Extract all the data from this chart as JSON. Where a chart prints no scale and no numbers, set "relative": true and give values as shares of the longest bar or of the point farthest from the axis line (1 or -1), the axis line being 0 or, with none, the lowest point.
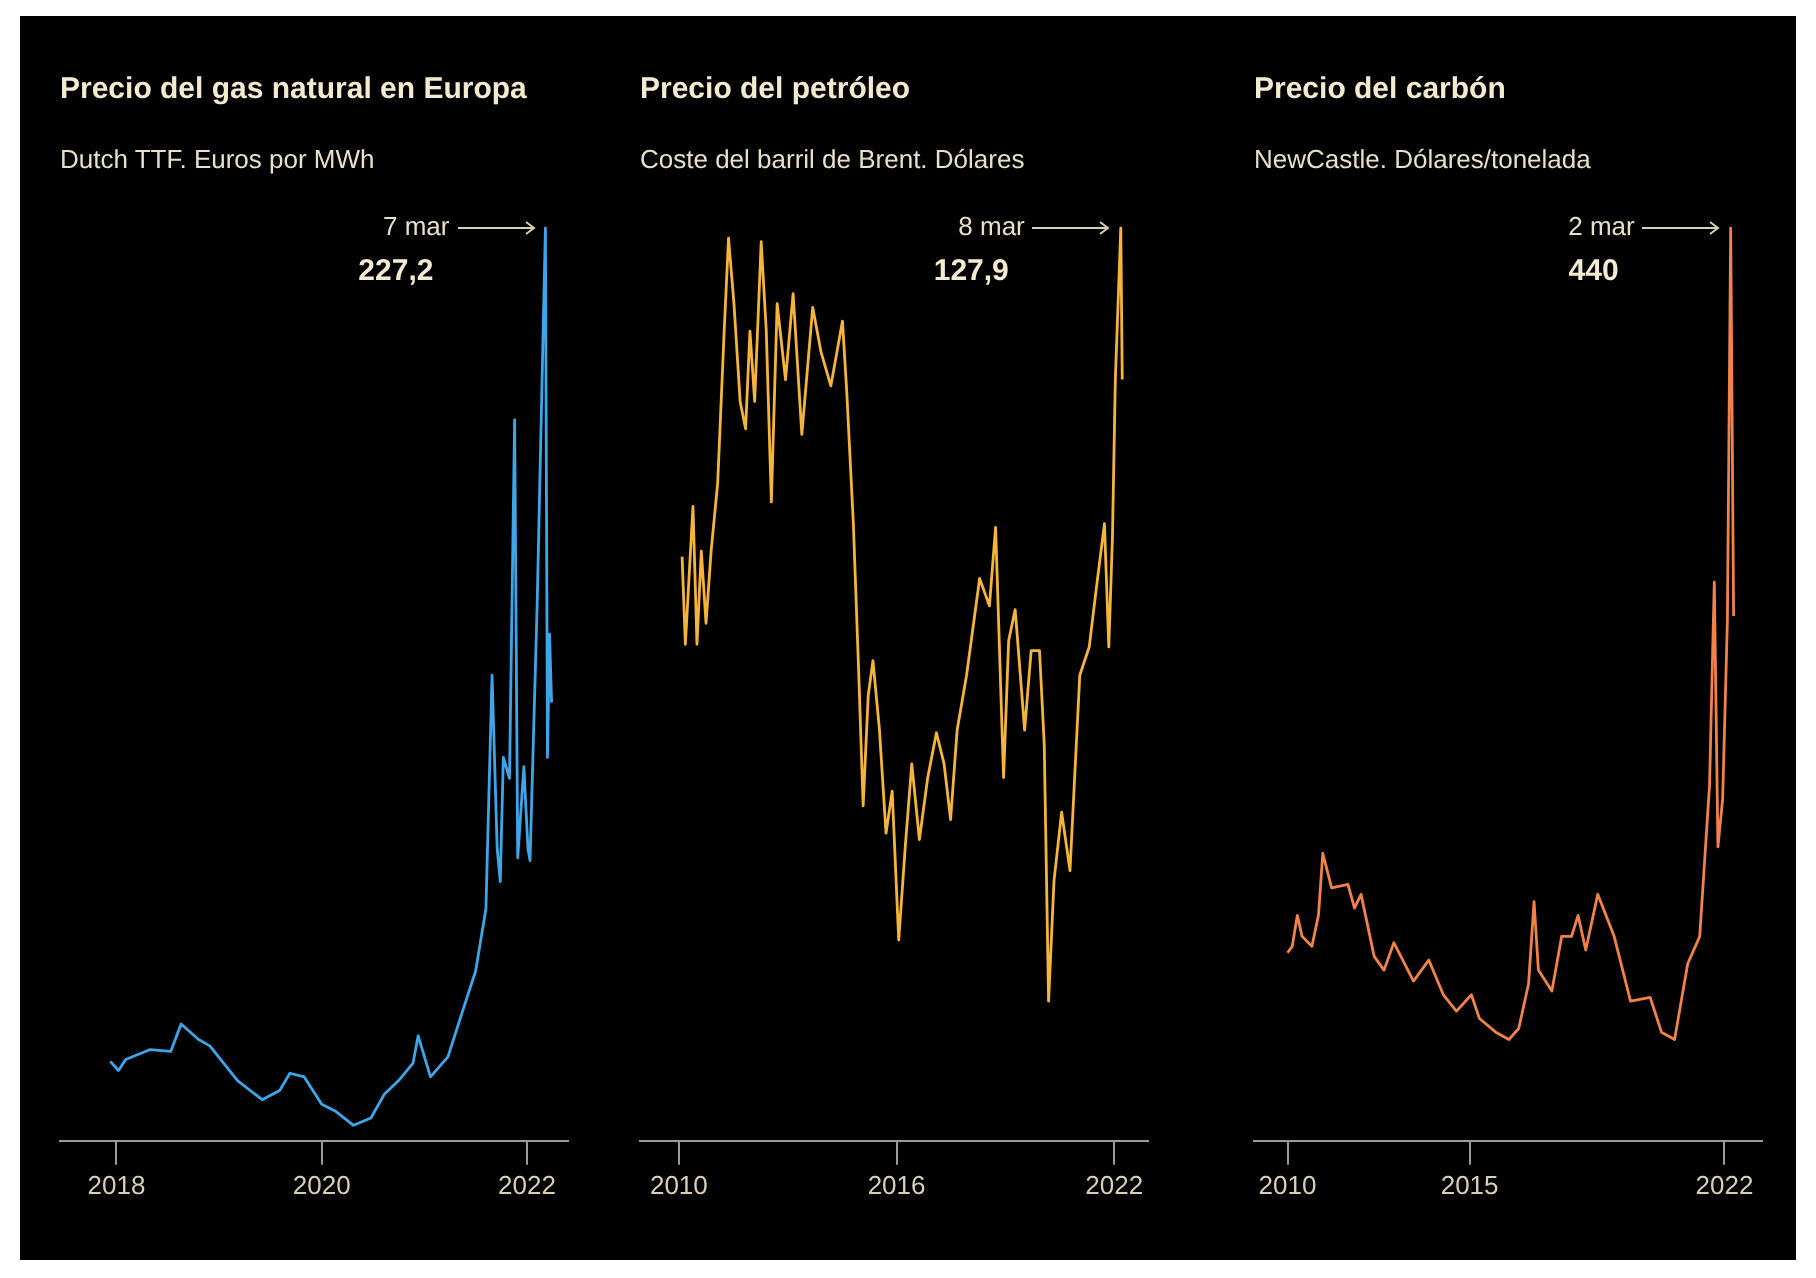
{
  "chart_data": [
    {
      "type": "line",
      "relative": true,
      "title": "Precio del gas natural en Europa",
      "subtitle": "Dutch TTF. Euros por MWh",
      "x": [
        2017.94,
        2018.02,
        2018.09,
        2018.33,
        2018.53,
        2018.63,
        2018.8,
        2018.91,
        2019.18,
        2019.42,
        2019.59,
        2019.69,
        2019.83,
        2020.0,
        2020.14,
        2020.31,
        2020.48,
        2020.61,
        2020.75,
        2020.89,
        2020.94,
        2021.06,
        2021.23,
        2021.37,
        2021.5,
        2021.6,
        2021.66,
        2021.71,
        2021.74,
        2021.77,
        2021.83,
        2021.88,
        2021.91,
        2021.97,
        2022.01,
        2022.03,
        2022.1,
        2022.18,
        2022.2,
        2022.22,
        2022.24
      ],
      "series": [
        {
          "color": "#3ea6e8",
          "values": [
            0.087,
            0.077,
            0.089,
            0.1,
            0.098,
            0.128,
            0.111,
            0.104,
            0.066,
            0.045,
            0.055,
            0.074,
            0.07,
            0.04,
            0.032,
            0.017,
            0.025,
            0.051,
            0.066,
            0.085,
            0.115,
            0.07,
            0.092,
            0.141,
            0.186,
            0.254,
            0.51,
            0.32,
            0.284,
            0.42,
            0.397,
            0.79,
            0.31,
            0.41,
            0.32,
            0.307,
            0.59,
            1,
            0.42,
            0.555,
            0.48
          ]
        }
      ],
      "xlim": [
        2017.45,
        2022.4
      ],
      "xticks": [
        2018,
        2020,
        2022
      ],
      "tick_labels": "x",
      "grid": false,
      "legend": false,
      "annotations": [
        "7 mar",
        "227,2"
      ]
    },
    {
      "type": "line",
      "relative": true,
      "title": "Precio del petróleo",
      "subtitle": "Coste del barril de Brent. Dólares",
      "x": [
        2010.09,
        2010.18,
        2010.39,
        2010.5,
        2010.62,
        2010.75,
        2010.89,
        2011.07,
        2011.25,
        2011.37,
        2011.52,
        2011.69,
        2011.84,
        2011.96,
        2012.09,
        2012.27,
        2012.41,
        2012.55,
        2012.71,
        2012.94,
        2013.15,
        2013.39,
        2013.69,
        2013.92,
        2014.19,
        2014.51,
        2014.63,
        2014.81,
        2014.96,
        2015.08,
        2015.22,
        2015.35,
        2015.53,
        2015.71,
        2015.88,
        2016.06,
        2016.24,
        2016.42,
        2016.63,
        2016.86,
        2017.1,
        2017.31,
        2017.49,
        2017.67,
        2017.93,
        2018.29,
        2018.56,
        2018.73,
        2018.95,
        2019.09,
        2019.27,
        2019.53,
        2019.71,
        2019.94,
        2020.07,
        2020.19,
        2020.34,
        2020.55,
        2020.78,
        2021.05,
        2021.31,
        2021.49,
        2021.73,
        2021.85,
        2021.95,
        2022.03,
        2022.18,
        2022.22
      ],
      "series": [
        {
          "color": "#f5b53c",
          "values": [
            0.64,
            0.544,
            0.695,
            0.544,
            0.646,
            0.567,
            0.646,
            0.72,
            0.887,
            0.989,
            0.917,
            0.81,
            0.78,
            0.887,
            0.81,
            0.985,
            0.887,
            0.7,
            0.917,
            0.834,
            0.928,
            0.774,
            0.913,
            0.864,
            0.827,
            0.898,
            0.819,
            0.676,
            0.51,
            0.367,
            0.488,
            0.526,
            0.45,
            0.337,
            0.383,
            0.22,
            0.322,
            0.413,
            0.33,
            0.398,
            0.447,
            0.413,
            0.352,
            0.45,
            0.51,
            0.616,
            0.586,
            0.672,
            0.398,
            0.548,
            0.582,
            0.45,
            0.537,
            0.537,
            0.435,
            0.153,
            0.285,
            0.36,
            0.296,
            0.51,
            0.541,
            0.6,
            0.676,
            0.541,
            0.661,
            0.834,
            1,
            0.834
          ]
        }
      ],
      "xlim": [
        2008.93,
        2022.93
      ],
      "xticks": [
        2010,
        2016,
        2022
      ],
      "tick_labels": "x",
      "grid": false,
      "legend": false,
      "annotations": [
        "8 mar",
        "127,9"
      ]
    },
    {
      "type": "line",
      "relative": true,
      "title": "Precio del carbón",
      "subtitle": "NewCastle. Dólares/tonelada",
      "x": [
        2010.0,
        2010.13,
        2010.27,
        2010.4,
        2010.67,
        2010.85,
        2010.97,
        2011.21,
        2011.66,
        2011.84,
        2012.02,
        2012.38,
        2012.65,
        2012.92,
        2013.46,
        2013.88,
        2014.28,
        2014.64,
        2015.05,
        2015.27,
        2015.72,
        2016.08,
        2016.35,
        2016.62,
        2016.77,
        2016.89,
        2017.26,
        2017.53,
        2017.8,
        2017.98,
        2018.19,
        2018.52,
        2018.97,
        2019.42,
        2019.96,
        2020.27,
        2020.63,
        2020.99,
        2021.32,
        2021.59,
        2021.72,
        2021.82,
        2021.95,
        2022.08,
        2022.17,
        2022.25
      ],
      "series": [
        {
          "color": "#f0824a",
          "values": [
            0.206,
            0.213,
            0.247,
            0.224,
            0.213,
            0.247,
            0.315,
            0.277,
            0.281,
            0.255,
            0.27,
            0.202,
            0.187,
            0.217,
            0.175,
            0.198,
            0.16,
            0.142,
            0.16,
            0.134,
            0.119,
            0.111,
            0.123,
            0.172,
            0.262,
            0.187,
            0.164,
            0.224,
            0.224,
            0.247,
            0.209,
            0.27,
            0.224,
            0.153,
            0.157,
            0.119,
            0.111,
            0.194,
            0.224,
            0.39,
            0.612,
            0.322,
            0.375,
            0.571,
            1,
            0.575
          ]
        }
      ],
      "xlim": [
        2009.08,
        2023.03
      ],
      "xticks": [
        2010,
        2015,
        2022
      ],
      "tick_labels": "x",
      "grid": false,
      "legend": false,
      "annotations": [
        "2 mar",
        "440"
      ]
    }
  ]
}
